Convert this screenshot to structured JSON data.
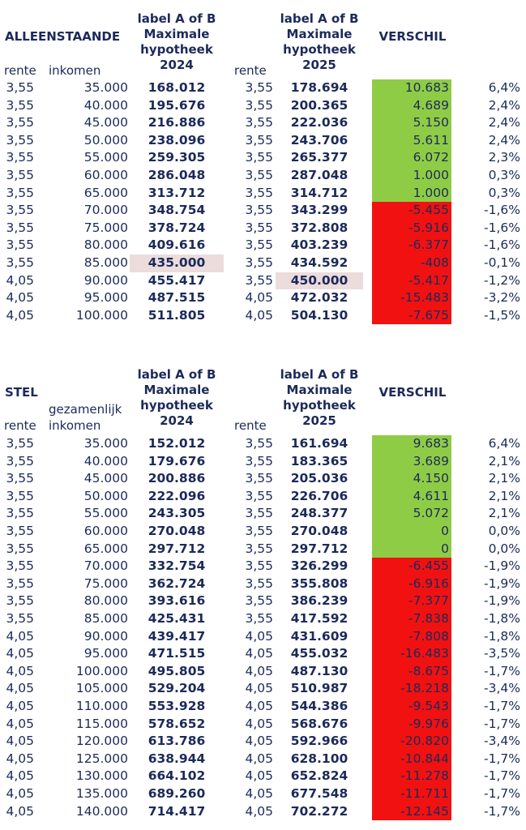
{
  "sections": [
    {
      "title": "ALLEENSTAANDE",
      "income_label": "",
      "hdr2024": [
        "label A of B",
        "Maximale",
        "hypotheek",
        "2024"
      ],
      "hdr2025": [
        "label A of B",
        "Maximale",
        "hypotheek",
        "2025"
      ],
      "verschil": "VERSCHIL",
      "rente1": "rente",
      "inkomen": "inkomen",
      "rente2": "rente",
      "rows": [
        {
          "r1": "3,55",
          "inc": "35.000",
          "m24": "168.012",
          "r2": "3,55",
          "m25": "178.694",
          "dif": "10.683",
          "pct": "6,4%",
          "sign": "pos"
        },
        {
          "r1": "3,55",
          "inc": "40.000",
          "m24": "195.676",
          "r2": "3,55",
          "m25": "200.365",
          "dif": "4.689",
          "pct": "2,4%",
          "sign": "pos"
        },
        {
          "r1": "3,55",
          "inc": "45.000",
          "m24": "216.886",
          "r2": "3,55",
          "m25": "222.036",
          "dif": "5.150",
          "pct": "2,4%",
          "sign": "pos"
        },
        {
          "r1": "3,55",
          "inc": "50.000",
          "m24": "238.096",
          "r2": "3,55",
          "m25": "243.706",
          "dif": "5.611",
          "pct": "2,4%",
          "sign": "pos"
        },
        {
          "r1": "3,55",
          "inc": "55.000",
          "m24": "259.305",
          "r2": "3,55",
          "m25": "265.377",
          "dif": "6.072",
          "pct": "2,3%",
          "sign": "pos"
        },
        {
          "r1": "3,55",
          "inc": "60.000",
          "m24": "286.048",
          "r2": "3,55",
          "m25": "287.048",
          "dif": "1.000",
          "pct": "0,3%",
          "sign": "pos"
        },
        {
          "r1": "3,55",
          "inc": "65.000",
          "m24": "313.712",
          "r2": "3,55",
          "m25": "314.712",
          "dif": "1.000",
          "pct": "0,3%",
          "sign": "pos"
        },
        {
          "r1": "3,55",
          "inc": "70.000",
          "m24": "348.754",
          "r2": "3,55",
          "m25": "343.299",
          "dif": "-5.455",
          "pct": "-1,6%",
          "sign": "neg"
        },
        {
          "r1": "3,55",
          "inc": "75.000",
          "m24": "378.724",
          "r2": "3,55",
          "m25": "372.808",
          "dif": "-5.916",
          "pct": "-1,6%",
          "sign": "neg"
        },
        {
          "r1": "3,55",
          "inc": "80.000",
          "m24": "409.616",
          "r2": "3,55",
          "m25": "403.239",
          "dif": "-6.377",
          "pct": "-1,6%",
          "sign": "neg"
        },
        {
          "r1": "3,55",
          "inc": "85.000",
          "m24": "435.000",
          "r2": "3,55",
          "m25": "434.592",
          "dif": "-408",
          "pct": "-0,1%",
          "sign": "neg",
          "hl24": true
        },
        {
          "r1": "4,05",
          "inc": "90.000",
          "m24": "455.417",
          "r2": "3,55",
          "m25": "450.000",
          "dif": "-5.417",
          "pct": "-1,2%",
          "sign": "neg",
          "hl25": true
        },
        {
          "r1": "4,05",
          "inc": "95.000",
          "m24": "487.515",
          "r2": "4,05",
          "m25": "472.032",
          "dif": "-15.483",
          "pct": "-3,2%",
          "sign": "neg"
        },
        {
          "r1": "4,05",
          "inc": "100.000",
          "m24": "511.805",
          "r2": "4,05",
          "m25": "504.130",
          "dif": "-7.675",
          "pct": "-1,5%",
          "sign": "neg"
        }
      ]
    },
    {
      "title": "STEL",
      "income_label": "gezamenlijk",
      "hdr2024": [
        "label A of B",
        "Maximale",
        "hypotheek",
        "2024"
      ],
      "hdr2025": [
        "label A of B",
        "Maximale",
        "hypotheek",
        "2025"
      ],
      "verschil": "VERSCHIL",
      "rente1": "rente",
      "inkomen": "inkomen",
      "rente2": "rente",
      "rows": [
        {
          "r1": "3,55",
          "inc": "35.000",
          "m24": "152.012",
          "r2": "3,55",
          "m25": "161.694",
          "dif": "9.683",
          "pct": "6,4%",
          "sign": "pos"
        },
        {
          "r1": "3,55",
          "inc": "40.000",
          "m24": "179.676",
          "r2": "3,55",
          "m25": "183.365",
          "dif": "3.689",
          "pct": "2,1%",
          "sign": "pos"
        },
        {
          "r1": "3,55",
          "inc": "45.000",
          "m24": "200.886",
          "r2": "3,55",
          "m25": "205.036",
          "dif": "4.150",
          "pct": "2,1%",
          "sign": "pos"
        },
        {
          "r1": "3,55",
          "inc": "50.000",
          "m24": "222.096",
          "r2": "3,55",
          "m25": "226.706",
          "dif": "4.611",
          "pct": "2,1%",
          "sign": "pos"
        },
        {
          "r1": "3,55",
          "inc": "55.000",
          "m24": "243.305",
          "r2": "3,55",
          "m25": "248.377",
          "dif": "5.072",
          "pct": "2,1%",
          "sign": "pos"
        },
        {
          "r1": "3,55",
          "inc": "60.000",
          "m24": "270.048",
          "r2": "3,55",
          "m25": "270.048",
          "dif": "0",
          "pct": "0,0%",
          "sign": "pos"
        },
        {
          "r1": "3,55",
          "inc": "65.000",
          "m24": "297.712",
          "r2": "3,55",
          "m25": "297.712",
          "dif": "0",
          "pct": "0,0%",
          "sign": "pos"
        },
        {
          "r1": "3,55",
          "inc": "70.000",
          "m24": "332.754",
          "r2": "3,55",
          "m25": "326.299",
          "dif": "-6.455",
          "pct": "-1,9%",
          "sign": "neg"
        },
        {
          "r1": "3,55",
          "inc": "75.000",
          "m24": "362.724",
          "r2": "3,55",
          "m25": "355.808",
          "dif": "-6.916",
          "pct": "-1,9%",
          "sign": "neg"
        },
        {
          "r1": "3,55",
          "inc": "80.000",
          "m24": "393.616",
          "r2": "3,55",
          "m25": "386.239",
          "dif": "-7.377",
          "pct": "-1,9%",
          "sign": "neg"
        },
        {
          "r1": "3,55",
          "inc": "85.000",
          "m24": "425.431",
          "r2": "3,55",
          "m25": "417.592",
          "dif": "-7.838",
          "pct": "-1,8%",
          "sign": "neg"
        },
        {
          "r1": "4,05",
          "inc": "90.000",
          "m24": "439.417",
          "r2": "4,05",
          "m25": "431.609",
          "dif": "-7.808",
          "pct": "-1,8%",
          "sign": "neg"
        },
        {
          "r1": "4,05",
          "inc": "95.000",
          "m24": "471.515",
          "r2": "4,05",
          "m25": "455.032",
          "dif": "-16.483",
          "pct": "-3,5%",
          "sign": "neg"
        },
        {
          "r1": "4,05",
          "inc": "100.000",
          "m24": "495.805",
          "r2": "4,05",
          "m25": "487.130",
          "dif": "-8.675",
          "pct": "-1,7%",
          "sign": "neg"
        },
        {
          "r1": "4,05",
          "inc": "105.000",
          "m24": "529.204",
          "r2": "4,05",
          "m25": "510.987",
          "dif": "-18.218",
          "pct": "-3,4%",
          "sign": "neg"
        },
        {
          "r1": "4,05",
          "inc": "110.000",
          "m24": "553.928",
          "r2": "4,05",
          "m25": "544.386",
          "dif": "-9.543",
          "pct": "-1,7%",
          "sign": "neg"
        },
        {
          "r1": "4,05",
          "inc": "115.000",
          "m24": "578.652",
          "r2": "4,05",
          "m25": "568.676",
          "dif": "-9.976",
          "pct": "-1,7%",
          "sign": "neg"
        },
        {
          "r1": "4,05",
          "inc": "120.000",
          "m24": "613.786",
          "r2": "4,05",
          "m25": "592.966",
          "dif": "-20.820",
          "pct": "-3,4%",
          "sign": "neg"
        },
        {
          "r1": "4,05",
          "inc": "125.000",
          "m24": "638.944",
          "r2": "4,05",
          "m25": "628.100",
          "dif": "-10.844",
          "pct": "-1,7%",
          "sign": "neg"
        },
        {
          "r1": "4,05",
          "inc": "130.000",
          "m24": "664.102",
          "r2": "4,05",
          "m25": "652.824",
          "dif": "-11.278",
          "pct": "-1,7%",
          "sign": "neg"
        },
        {
          "r1": "4,05",
          "inc": "135.000",
          "m24": "689.260",
          "r2": "4,05",
          "m25": "677.548",
          "dif": "-11.711",
          "pct": "-1,7%",
          "sign": "neg"
        },
        {
          "r1": "4,05",
          "inc": "140.000",
          "m24": "714.417",
          "r2": "4,05",
          "m25": "702.272",
          "dif": "-12.145",
          "pct": "-1,7%",
          "sign": "neg"
        }
      ]
    }
  ]
}
